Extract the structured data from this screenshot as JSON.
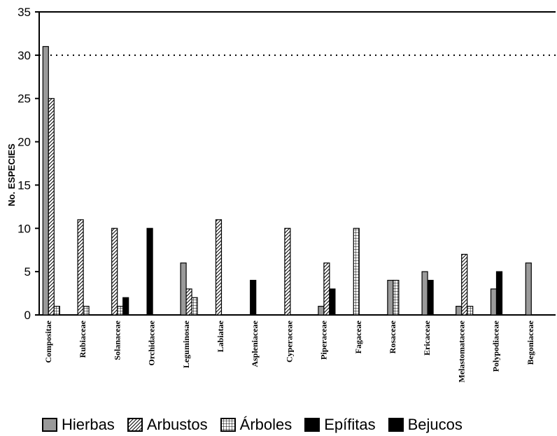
{
  "chart_data": {
    "type": "bar",
    "ylabel": "No. ESPECIES",
    "ylim": [
      0,
      35
    ],
    "yticks": [
      "0",
      "5",
      "10",
      "15",
      "20",
      "25",
      "30",
      "35"
    ],
    "categories": [
      "Compositae",
      "Rubiaceae",
      "Solanaceae",
      "Orchidaceae",
      "Leguminosae",
      "Labiatae",
      "Aspleniaceae",
      "Cyperaceae",
      "Piperaceae",
      "Fagaceae",
      "Rosaceae",
      "Ericaceae",
      "Melastomataceae",
      "Polypodiaceae",
      "Begoniaceae"
    ],
    "series": [
      {
        "name": "Hierbas",
        "pattern": "gray",
        "values": [
          31,
          0,
          0,
          0,
          6,
          0,
          0,
          0,
          1,
          0,
          4,
          5,
          1,
          3,
          6
        ]
      },
      {
        "name": "Arbustos",
        "pattern": "diagonal",
        "values": [
          25,
          11,
          10,
          0,
          3,
          11,
          0,
          10,
          6,
          0,
          0,
          0,
          7,
          0,
          0
        ]
      },
      {
        "name": "Árboles",
        "pattern": "grid",
        "values": [
          1,
          1,
          1,
          0,
          2,
          0,
          0,
          0,
          0,
          10,
          4,
          0,
          1,
          0,
          0
        ]
      },
      {
        "name": "Epífitas",
        "pattern": "black",
        "values": [
          0,
          0,
          2,
          10,
          0,
          0,
          4,
          0,
          0,
          0,
          0,
          4,
          0,
          5,
          0
        ]
      },
      {
        "name": "Bejucos",
        "pattern": "black",
        "values": [
          0,
          0,
          0,
          0,
          0,
          0,
          0,
          0,
          3,
          0,
          0,
          0,
          0,
          0,
          0
        ]
      }
    ],
    "reference_line": 30,
    "grid": false,
    "legend_position": "bottom"
  }
}
